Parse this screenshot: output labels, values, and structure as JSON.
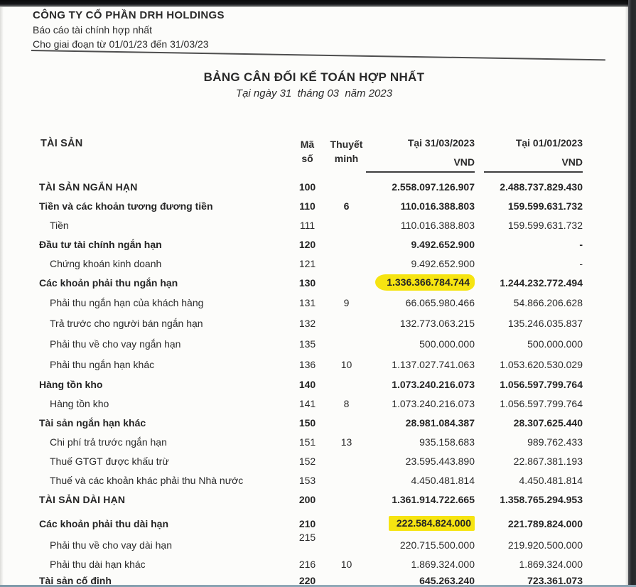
{
  "colors": {
    "highlight": "#f6e411",
    "paper": "#fcfcfa",
    "text": "#2a2a2a",
    "scan_band": "#26282a"
  },
  "letterhead": {
    "company": "CÔNG TY CỔ PHẦN DRH HOLDINGS",
    "report_type": "Báo cáo tài chính hợp nhất",
    "period": "Cho giai đoạn từ 01/01/23 đến 31/03/23"
  },
  "title": {
    "main": "BẢNG CÂN ĐỐI KẾ TOÁN HỢP NHẤT",
    "date": "Tại ngày 31  tháng 03  năm 2023"
  },
  "table": {
    "columns": {
      "assets": "TÀI SẢN",
      "code_line1": "Mã",
      "code_line2": "số",
      "note_line1": "Thuyết",
      "note_line2": "minh",
      "col1_title": "Tại 31/03/2023",
      "col2_title": "Tại 01/01/2023",
      "currency1": "VND",
      "currency2": "VND"
    },
    "rows": [
      {
        "label": "TÀI SẢN NGẮN HẠN",
        "code": "100",
        "note": "",
        "v1": "2.558.097.126.907",
        "v2": "2.488.737.829.430",
        "style": "section"
      },
      {
        "label": "Tiền và các khoản tương đương tiền",
        "code": "110",
        "note": "6",
        "v1": "110.016.388.803",
        "v2": "159.599.631.732",
        "style": "bold"
      },
      {
        "label": "Tiền",
        "code": "111",
        "note": "",
        "v1": "110.016.388.803",
        "v2": "159.599.631.732",
        "style": "item"
      },
      {
        "label": "Đầu tư tài chính ngắn hạn",
        "code": "120",
        "note": "",
        "v1": "9.492.652.900",
        "v2": "-",
        "style": "bold"
      },
      {
        "label": "Chứng khoán kinh doanh",
        "code": "121",
        "note": "",
        "v1": "9.492.652.900",
        "v2": "-",
        "style": "item"
      },
      {
        "label": "Các khoản phải thu ngắn hạn",
        "code": "130",
        "note": "",
        "v1": "1.336.366.784.744",
        "v2": "1.244.232.772.494",
        "style": "bold",
        "highlight_v1": "blob"
      },
      {
        "label": "Phải thu ngắn hạn của khách hàng",
        "code": "131",
        "note": "9",
        "v1": "66.065.980.466",
        "v2": "54.866.206.628",
        "style": "item"
      },
      {
        "label": "Trả trước cho người bán ngắn hạn",
        "code": "132",
        "note": "",
        "v1": "132.773.063.215",
        "v2": "135.246.035.837",
        "style": "item"
      },
      {
        "label": "Phải thu về cho vay ngắn hạn",
        "code": "135",
        "note": "",
        "v1": "500.000.000",
        "v2": "500.000.000",
        "style": "item"
      },
      {
        "label": "Phải thu ngắn hạn khác",
        "code": "136",
        "note": "10",
        "v1": "1.137.027.741.063",
        "v2": "1.053.620.530.029",
        "style": "item"
      },
      {
        "label": "Hàng tồn kho",
        "code": "140",
        "note": "",
        "v1": "1.073.240.216.073",
        "v2": "1.056.597.799.764",
        "style": "bold"
      },
      {
        "label": "Hàng tồn kho",
        "code": "141",
        "note": "8",
        "v1": "1.073.240.216.073",
        "v2": "1.056.597.799.764",
        "style": "item"
      },
      {
        "label": "Tài sản ngắn hạn khác",
        "code": "150",
        "note": "",
        "v1": "28.981.084.387",
        "v2": "28.307.625.440",
        "style": "bold"
      },
      {
        "label": "Chi phí trả trước ngắn hạn",
        "code": "151",
        "note": "13",
        "v1": "935.158.683",
        "v2": "989.762.433",
        "style": "item"
      },
      {
        "label": "Thuế GTGT được khấu trừ",
        "code": "152",
        "note": "",
        "v1": "23.595.443.890",
        "v2": "22.867.381.193",
        "style": "item"
      },
      {
        "label": "Thuế và các khoản khác phải thu Nhà nước",
        "code": "153",
        "note": "",
        "v1": "4.450.481.814",
        "v2": "4.450.481.814",
        "style": "item"
      },
      {
        "label": "TÀI SẢN DÀI HẠN",
        "code": "200",
        "note": "",
        "v1": "1.361.914.722.665",
        "v2": "1.358.765.294.953",
        "style": "section"
      },
      {
        "label": "Các khoản phải thu dài hạn",
        "code": "210",
        "note": "",
        "v1": "222.584.824.000",
        "v2": "221.789.824.000",
        "style": "bold",
        "highlight_v1": "flat"
      },
      {
        "label": "Phải thu về cho vay dài hạn",
        "code": "215",
        "note": "",
        "v1": "220.715.500.000",
        "v2": "219.920.500.000",
        "style": "item",
        "code_raised": true
      },
      {
        "label": "Phải thu dài hạn khác",
        "code": "216",
        "note": "10",
        "v1": "1.869.324.000",
        "v2": "1.869.324.000",
        "style": "item"
      },
      {
        "label": "Tài sản cố định",
        "code": "220",
        "note": "",
        "v1": "645.263.240",
        "v2": "723.361.073",
        "style": "bold"
      }
    ]
  }
}
